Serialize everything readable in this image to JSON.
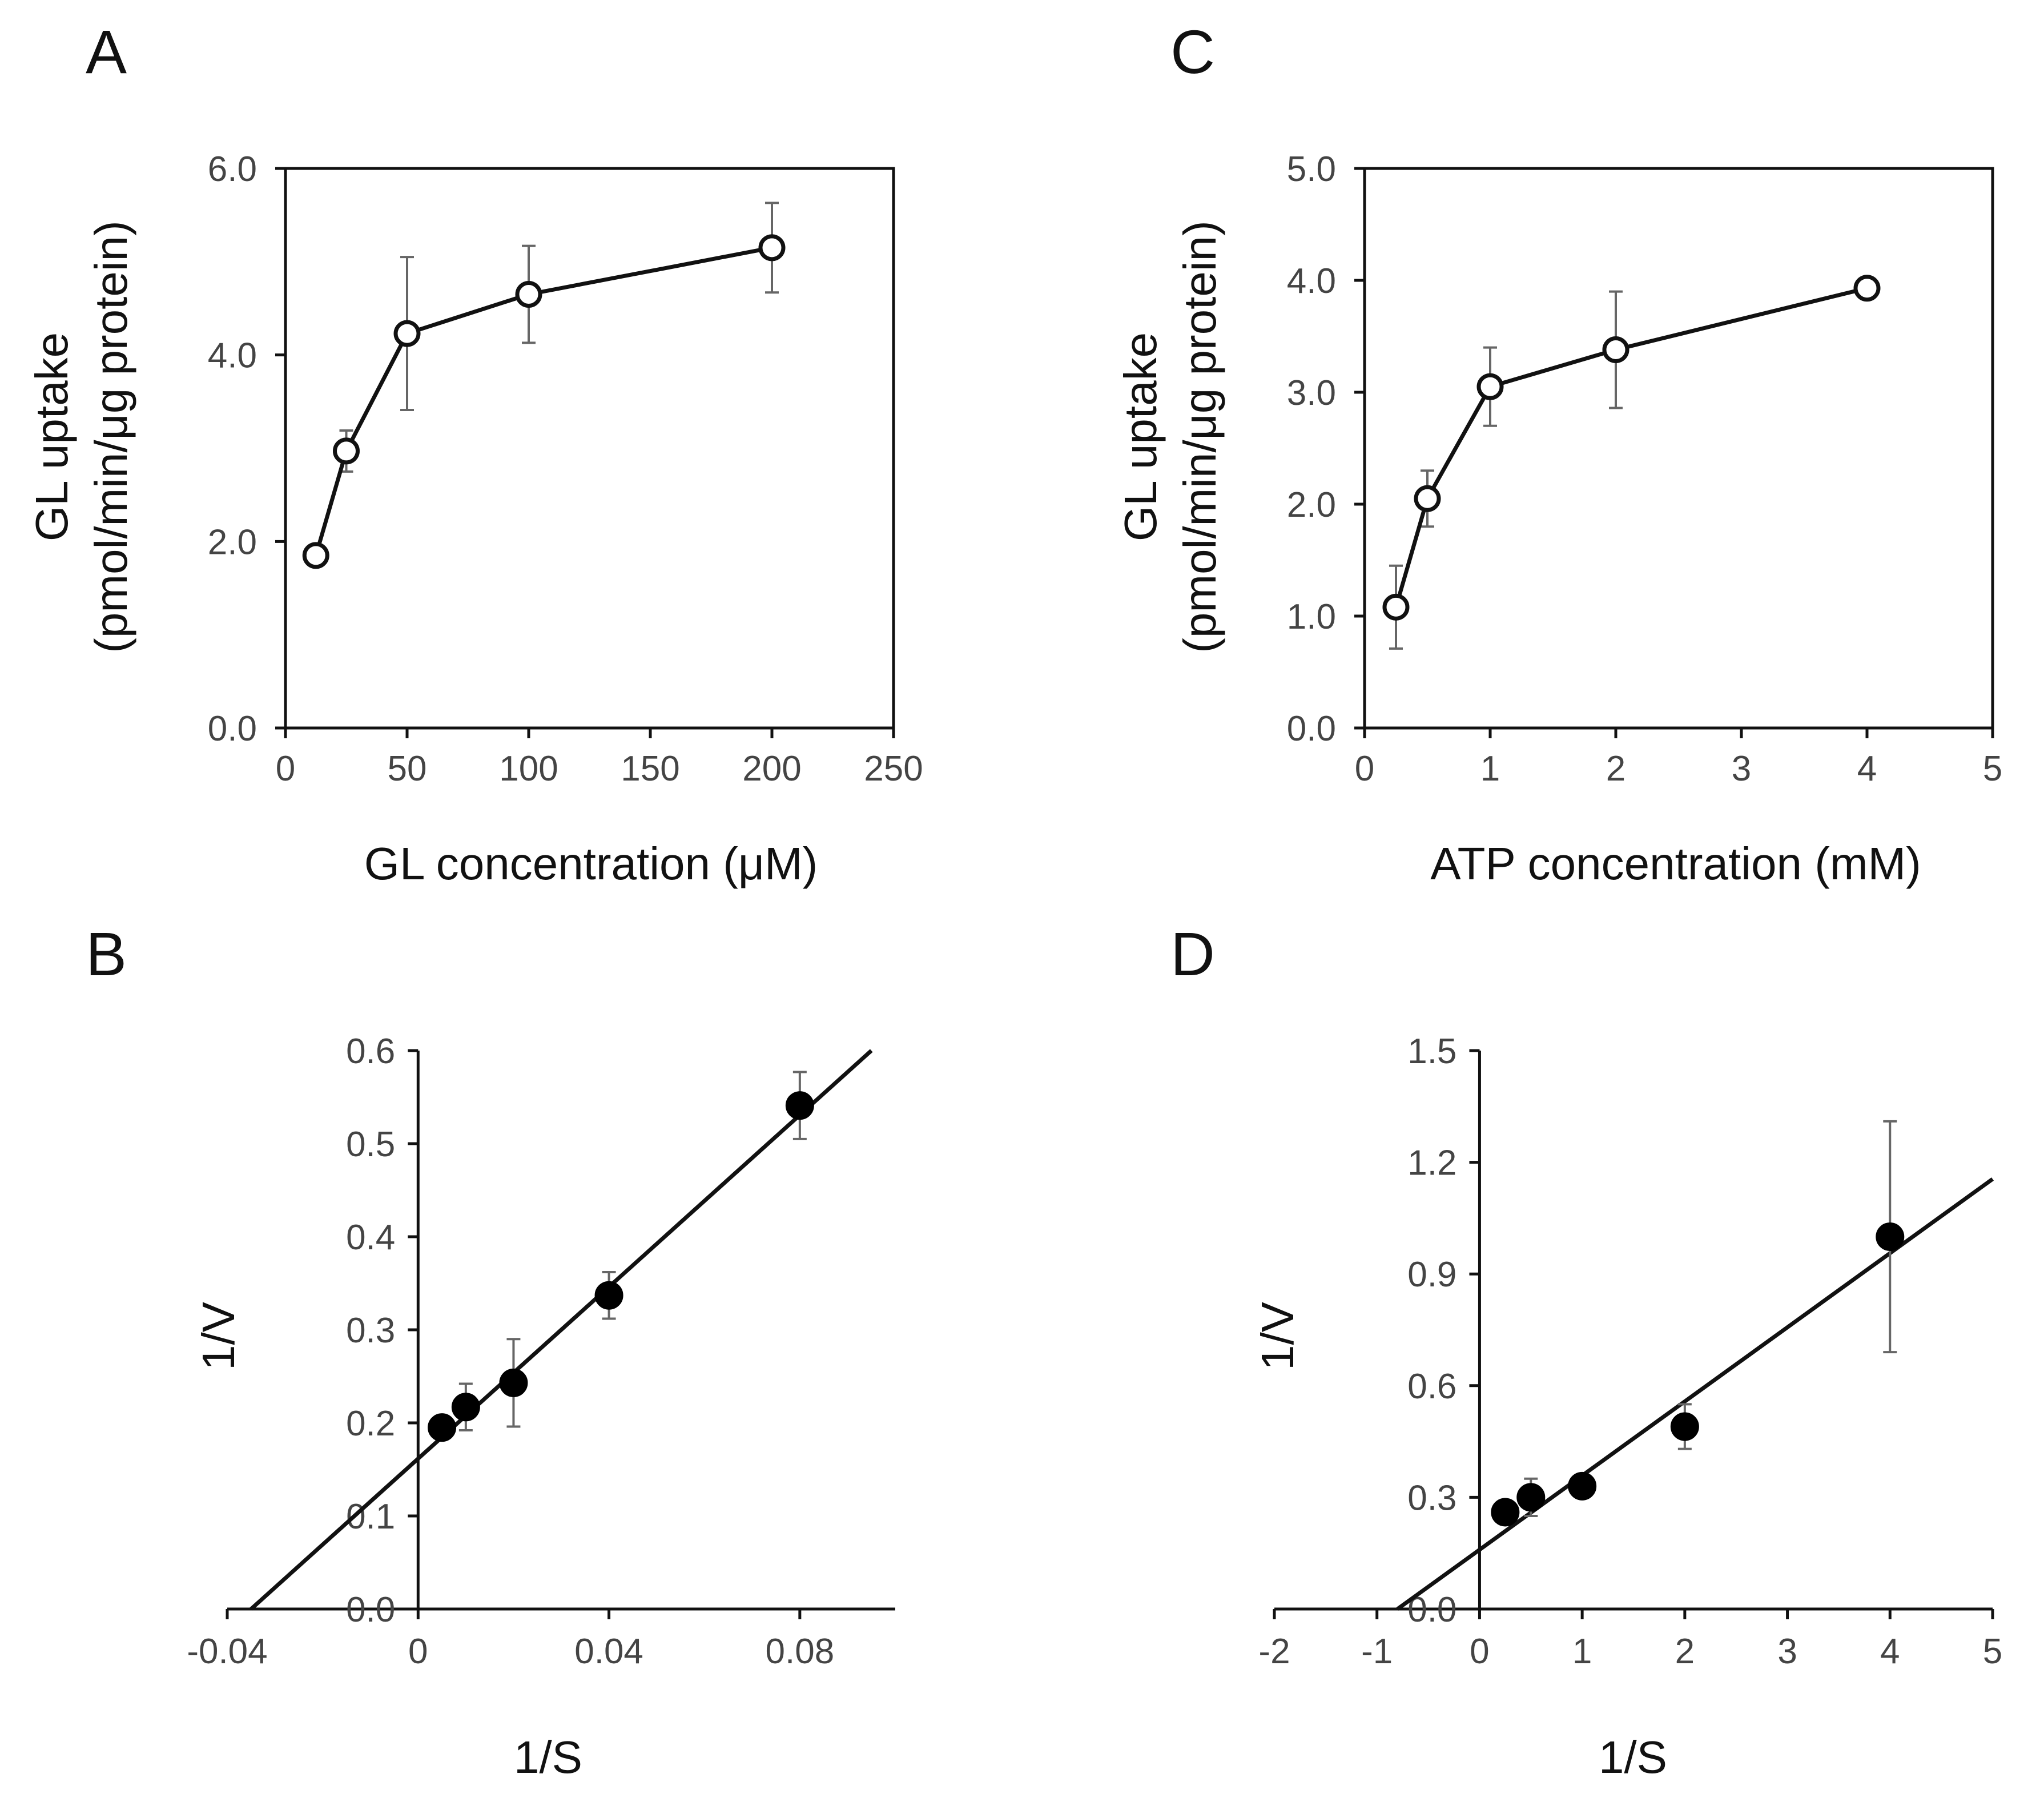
{
  "chart_data": [
    {
      "panel": "A",
      "type": "line",
      "x": [
        12.5,
        25,
        50,
        100,
        200
      ],
      "y": [
        1.85,
        2.97,
        4.23,
        4.65,
        5.15
      ],
      "error": [
        0.05,
        0.22,
        0.82,
        0.52,
        0.48
      ],
      "marker": "open-circle",
      "xlabel": "GL concentration (μM)",
      "ylabel_line1": "GL uptake",
      "ylabel_line2": "(pmol/min/μg protein)",
      "xlim": [
        0,
        250
      ],
      "ylim": [
        0,
        6
      ],
      "xticks": [
        0,
        50,
        100,
        150,
        200,
        250
      ],
      "xtick_labels": [
        "0",
        "50",
        "100",
        "150",
        "200",
        "250"
      ],
      "yticks": [
        0,
        2,
        4,
        6
      ],
      "ytick_labels": [
        "0.0",
        "2.0",
        "4.0",
        "6.0"
      ]
    },
    {
      "panel": "C",
      "type": "line",
      "x": [
        0.25,
        0.5,
        1,
        2,
        4
      ],
      "y": [
        1.08,
        2.05,
        3.05,
        3.38,
        3.93
      ],
      "error": [
        0.37,
        0.25,
        0.35,
        0.52,
        0.03
      ],
      "marker": "open-circle",
      "xlabel": "ATP concentration (mM)",
      "ylabel_line1": "GL uptake",
      "ylabel_line2": "(pmol/min/μg protein)",
      "xlim": [
        0,
        5
      ],
      "ylim": [
        0,
        5
      ],
      "xticks": [
        0,
        1,
        2,
        3,
        4,
        5
      ],
      "xtick_labels": [
        "0",
        "1",
        "2",
        "3",
        "4",
        "5"
      ],
      "yticks": [
        0,
        1,
        2,
        3,
        4,
        5
      ],
      "ytick_labels": [
        "0.0",
        "1.0",
        "2.0",
        "3.0",
        "4.0",
        "5.0"
      ]
    },
    {
      "panel": "B",
      "type": "scatter",
      "x": [
        0.005,
        0.01,
        0.02,
        0.04,
        0.08
      ],
      "y": [
        0.195,
        0.217,
        0.243,
        0.337,
        0.541
      ],
      "error": [
        0.01,
        0.025,
        0.047,
        0.025,
        0.036
      ],
      "marker": "filled-circle",
      "fit": {
        "x0": -0.035,
        "y0": 0.0,
        "x1": 0.095,
        "y1": 0.6
      },
      "xlabel": "1/S",
      "ylabel": "1/V",
      "xlim": [
        -0.04,
        0.1
      ],
      "ylim": [
        0,
        0.6
      ],
      "xticks": [
        -0.04,
        0,
        0.04,
        0.08
      ],
      "xtick_labels": [
        "-0.04",
        "0",
        "0.04",
        "0.08"
      ],
      "yticks": [
        0,
        0.1,
        0.2,
        0.3,
        0.4,
        0.5,
        0.6
      ],
      "ytick_labels": [
        "0.0",
        "0.1",
        "0.2",
        "0.3",
        "0.4",
        "0.5",
        "0.6"
      ]
    },
    {
      "panel": "D",
      "type": "scatter",
      "x": [
        0.25,
        0.5,
        1,
        2,
        4
      ],
      "y": [
        0.26,
        0.3,
        0.33,
        0.49,
        1.0
      ],
      "error": [
        0.02,
        0.05,
        0.02,
        0.06,
        0.31
      ],
      "marker": "filled-circle",
      "fit": {
        "x0": -0.8,
        "y0": 0.0,
        "x1": 5.0,
        "y1": 1.155
      },
      "xlabel": "1/S",
      "ylabel": "1/V",
      "xlim": [
        -2,
        5
      ],
      "ylim": [
        0,
        1.5
      ],
      "xticks": [
        -2,
        -1,
        0,
        1,
        2,
        3,
        4,
        5
      ],
      "xtick_labels": [
        "-2",
        "-1",
        "0",
        "1",
        "2",
        "3",
        "4",
        "5"
      ],
      "yticks": [
        0,
        0.3,
        0.6,
        0.9,
        1.2,
        1.5
      ],
      "ytick_labels": [
        "0.0",
        "0.3",
        "0.6",
        "0.9",
        "1.2",
        "1.5"
      ]
    }
  ]
}
